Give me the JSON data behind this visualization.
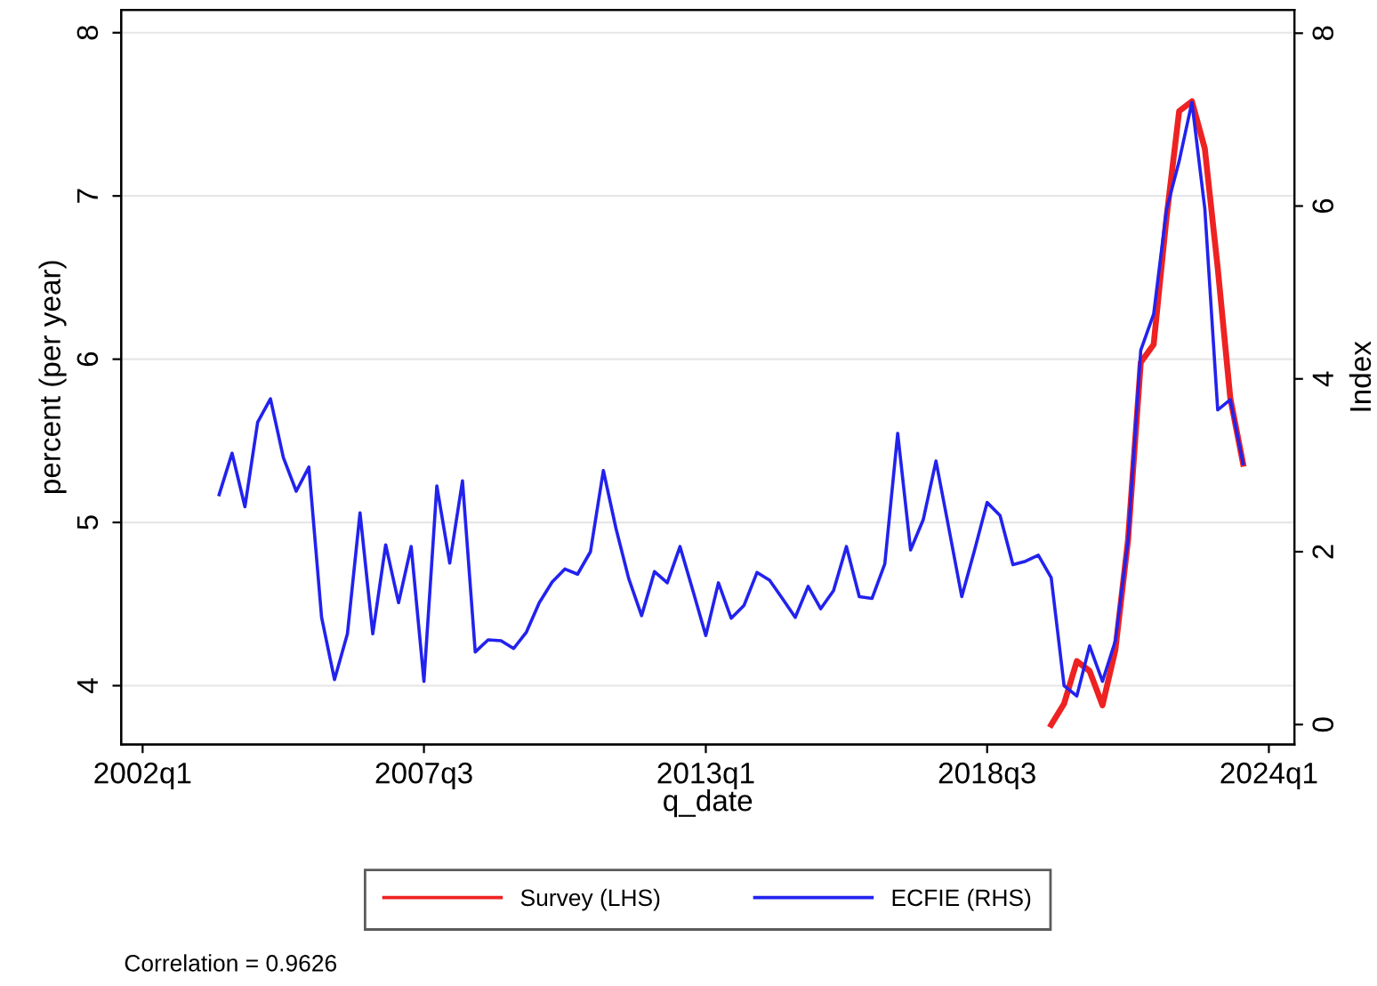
{
  "chart_data": {
    "type": "line",
    "xlabel": "q_date",
    "ylabel": "percent (per year)",
    "y2label": "Index",
    "xlim": [
      "2001-08",
      "2024-07"
    ],
    "xticks": [
      {
        "value": "2002-01",
        "label": "2002q1"
      },
      {
        "value": "2007-07",
        "label": "2007q3"
      },
      {
        "value": "2013-01",
        "label": "2013q1"
      },
      {
        "value": "2018-07",
        "label": "2018q3"
      },
      {
        "value": "2024-01",
        "label": "2024q1"
      }
    ],
    "ylim": [
      3.64,
      8.14
    ],
    "yticks": [
      4,
      5,
      6,
      7,
      8
    ],
    "y2lim": [
      -0.23,
      8.27
    ],
    "y2ticks": [
      0,
      2,
      4,
      6,
      8
    ],
    "grid": "y",
    "legend": "bottom",
    "line_style": "solid",
    "marker": "none",
    "annotations": [
      "Correlation = 0.9626"
    ],
    "series": [
      {
        "name": "Survey (LHS)",
        "color": "#ee2222",
        "x": [
          "2019-10",
          "2020-01",
          "2020-04",
          "2020-07",
          "2020-10",
          "2021-01",
          "2021-04",
          "2021-07",
          "2021-10",
          "2022-01",
          "2022-04",
          "2022-07",
          "2022-10",
          "2023-01",
          "2023-04",
          "2023-07"
        ],
        "values": [
          3.76,
          3.89,
          4.15,
          4.09,
          3.88,
          4.22,
          4.89,
          5.98,
          6.09,
          6.87,
          7.52,
          7.58,
          7.29,
          6.56,
          5.76,
          5.36
        ]
      },
      {
        "name": "ECFIE (RHS)",
        "color": "#2222ee",
        "axis": "y2",
        "x": [
          "2003-07",
          "2003-10",
          "2004-01",
          "2004-04",
          "2004-07",
          "2004-10",
          "2005-01",
          "2005-04",
          "2005-07",
          "2005-10",
          "2006-01",
          "2006-04",
          "2006-07",
          "2006-10",
          "2007-01",
          "2007-04",
          "2007-07",
          "2007-10",
          "2008-01",
          "2008-04",
          "2008-07",
          "2008-10",
          "2009-01",
          "2009-04",
          "2009-07",
          "2009-10",
          "2010-01",
          "2010-04",
          "2010-07",
          "2010-10",
          "2011-01",
          "2011-04",
          "2011-07",
          "2011-10",
          "2012-01",
          "2012-04",
          "2012-07",
          "2012-10",
          "2013-01",
          "2013-04",
          "2013-07",
          "2013-10",
          "2014-01",
          "2014-04",
          "2014-07",
          "2014-10",
          "2015-01",
          "2015-04",
          "2015-07",
          "2015-10",
          "2016-01",
          "2016-04",
          "2016-07",
          "2016-10",
          "2017-01",
          "2017-04",
          "2017-07",
          "2017-10",
          "2018-01",
          "2018-04",
          "2018-07",
          "2018-10",
          "2019-01",
          "2019-04",
          "2019-07",
          "2019-10",
          "2020-01",
          "2020-04",
          "2020-07",
          "2020-10",
          "2021-01",
          "2021-04",
          "2021-07",
          "2021-10",
          "2022-01",
          "2022-04",
          "2022-07",
          "2022-10",
          "2023-01",
          "2023-04",
          "2023-07"
        ],
        "values": [
          2.66,
          3.14,
          2.52,
          3.5,
          3.77,
          3.09,
          2.7,
          2.98,
          1.24,
          0.52,
          1.05,
          2.45,
          1.05,
          2.08,
          1.41,
          2.06,
          0.5,
          2.76,
          1.87,
          2.82,
          0.84,
          0.98,
          0.97,
          0.88,
          1.07,
          1.41,
          1.65,
          1.8,
          1.74,
          2.0,
          2.94,
          2.27,
          1.69,
          1.26,
          1.77,
          1.64,
          2.06,
          1.55,
          1.03,
          1.64,
          1.23,
          1.38,
          1.76,
          1.67,
          1.46,
          1.24,
          1.6,
          1.34,
          1.55,
          2.06,
          1.48,
          1.46,
          1.86,
          3.37,
          2.02,
          2.37,
          3.05,
          2.27,
          1.48,
          2.01,
          2.57,
          2.42,
          1.85,
          1.89,
          1.96,
          1.7,
          0.45,
          0.33,
          0.91,
          0.5,
          0.97,
          2.13,
          4.33,
          4.75,
          5.96,
          6.52,
          7.2,
          5.97,
          3.64,
          3.76,
          3.02
        ]
      }
    ]
  }
}
